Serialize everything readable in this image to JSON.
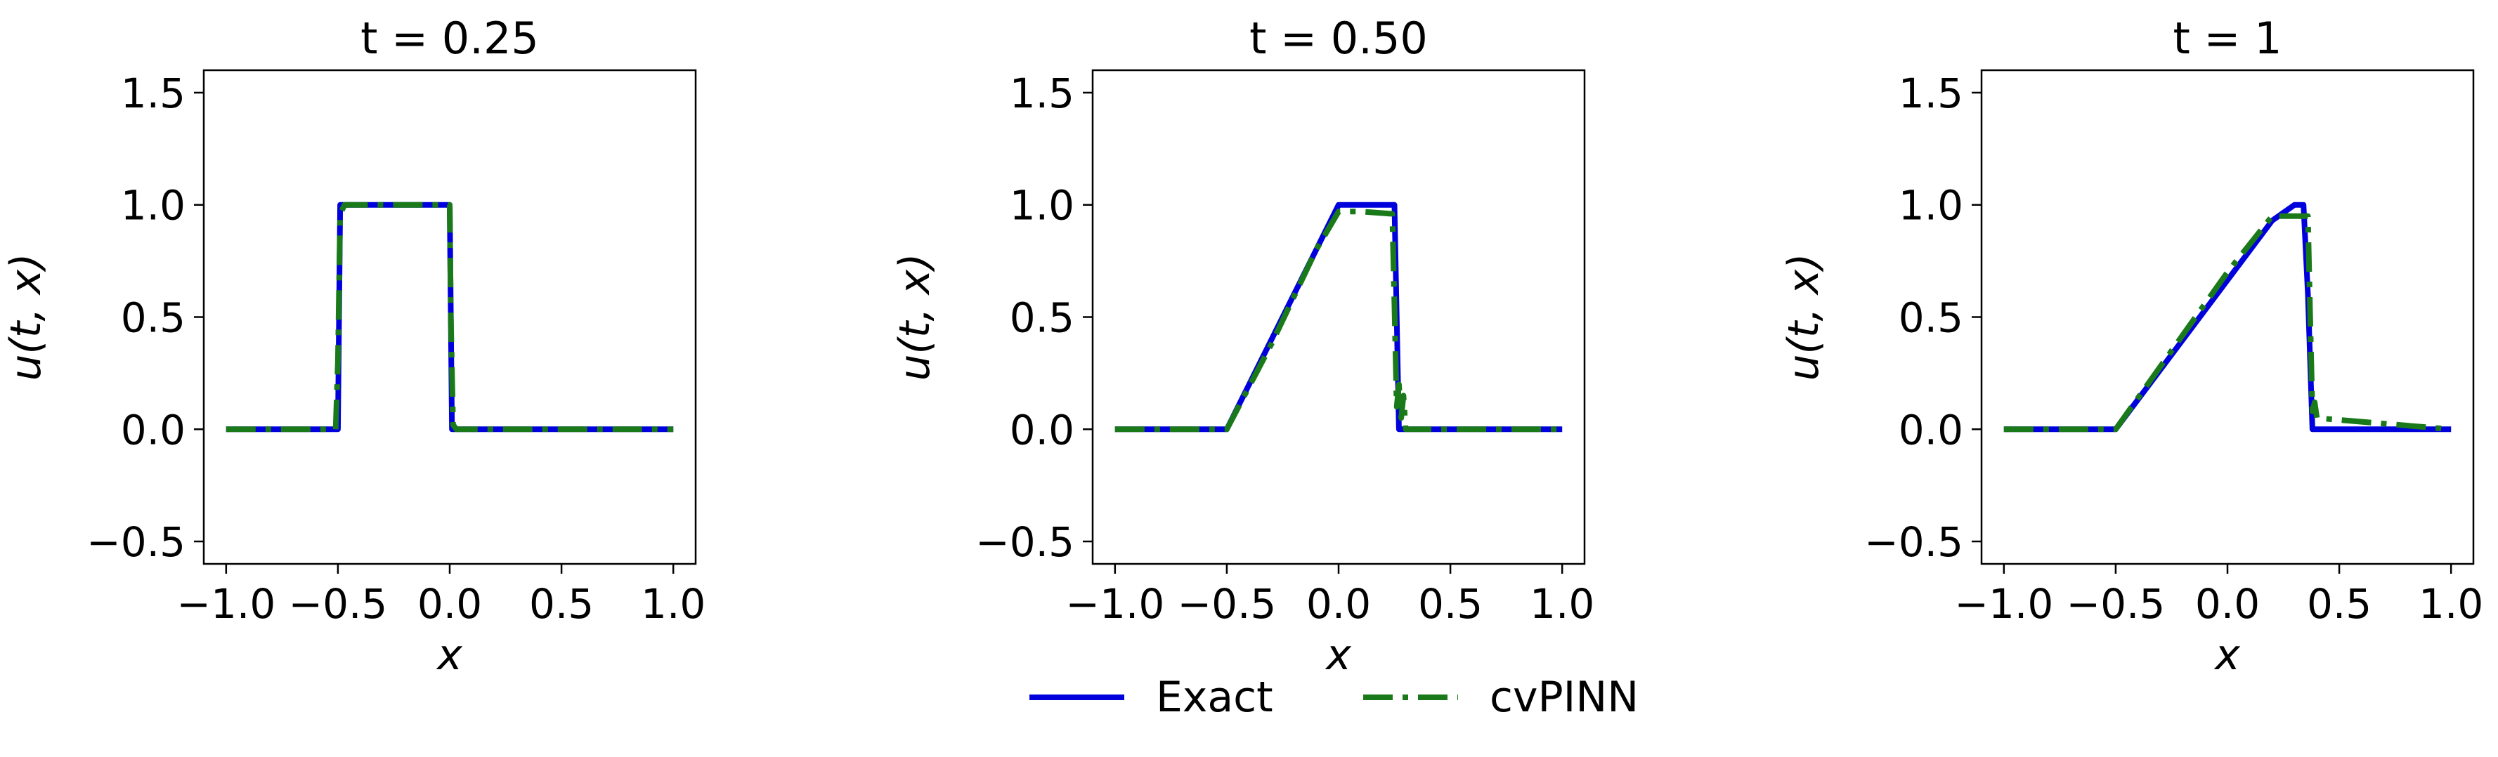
{
  "chart_data": [
    {
      "type": "line",
      "title": "t = 0.25",
      "xlabel": "x",
      "ylabel": "u(t, x)",
      "xlim": [
        -1.1,
        1.1
      ],
      "ylim": [
        -0.6,
        1.6
      ],
      "xticks": [
        -1.0,
        -0.5,
        0.0,
        0.5,
        1.0
      ],
      "xtick_labels": [
        "−1.0",
        "−0.5",
        "0.0",
        "0.5",
        "1.0"
      ],
      "yticks": [
        -0.5,
        0.0,
        0.5,
        1.0,
        1.5
      ],
      "ytick_labels": [
        "−0.5",
        "0.0",
        "0.5",
        "1.0",
        "1.5"
      ],
      "series": [
        {
          "name": "Exact",
          "color": "#0000dd",
          "style": "solid",
          "x": [
            -1.0,
            -0.5,
            -0.49,
            0.0,
            0.01,
            1.0
          ],
          "y": [
            0.0,
            0.0,
            1.0,
            1.0,
            0.0,
            0.0
          ]
        },
        {
          "name": "cvPINN",
          "color": "#1a7a1a",
          "style": "dashdot",
          "x": [
            -1.0,
            -0.51,
            -0.5,
            -0.49,
            -0.47,
            0.0,
            0.005,
            0.015,
            0.03,
            1.0
          ],
          "y": [
            0.0,
            0.0,
            0.3,
            0.96,
            1.0,
            1.0,
            0.5,
            0.02,
            0.0,
            0.0
          ]
        }
      ]
    },
    {
      "type": "line",
      "title": "t = 0.50",
      "xlabel": "x",
      "ylabel": "u(t, x)",
      "xlim": [
        -1.1,
        1.1
      ],
      "ylim": [
        -0.6,
        1.6
      ],
      "xticks": [
        -1.0,
        -0.5,
        0.0,
        0.5,
        1.0
      ],
      "xtick_labels": [
        "−1.0",
        "−0.5",
        "0.0",
        "0.5",
        "1.0"
      ],
      "yticks": [
        -0.5,
        0.0,
        0.5,
        1.0,
        1.5
      ],
      "ytick_labels": [
        "−0.5",
        "0.0",
        "0.5",
        "1.0",
        "1.5"
      ],
      "series": [
        {
          "name": "Exact",
          "color": "#0000dd",
          "style": "solid",
          "x": [
            -1.0,
            -0.5,
            0.0,
            0.25,
            0.27,
            1.0
          ],
          "y": [
            0.0,
            0.0,
            1.0,
            1.0,
            0.0,
            0.0
          ]
        },
        {
          "name": "cvPINN",
          "color": "#1a7a1a",
          "style": "dashdot",
          "x": [
            -1.0,
            -0.5,
            -0.3,
            -0.1,
            0.0,
            0.1,
            0.24,
            0.25,
            0.26,
            0.27,
            0.28,
            0.29,
            0.3,
            1.0
          ],
          "y": [
            0.0,
            0.0,
            0.38,
            0.8,
            0.97,
            0.97,
            0.96,
            0.55,
            0.1,
            0.2,
            0.05,
            0.15,
            0.0,
            0.0
          ]
        }
      ]
    },
    {
      "type": "line",
      "title": "t = 1",
      "xlabel": "x",
      "ylabel": "u(t, x)",
      "xlim": [
        -1.1,
        1.1
      ],
      "ylim": [
        -0.6,
        1.6
      ],
      "xticks": [
        -1.0,
        -0.5,
        0.0,
        0.5,
        1.0
      ],
      "xtick_labels": [
        "−1.0",
        "−0.5",
        "0.0",
        "0.5",
        "1.0"
      ],
      "yticks": [
        -0.5,
        0.0,
        0.5,
        1.0,
        1.5
      ],
      "ytick_labels": [
        "−0.5",
        "0.0",
        "0.5",
        "1.0",
        "1.5"
      ],
      "series": [
        {
          "name": "Exact",
          "color": "#0000dd",
          "style": "solid",
          "x": [
            -1.0,
            -0.5,
            0.2,
            0.3,
            0.34,
            0.36,
            0.38,
            1.0
          ],
          "y": [
            0.0,
            0.0,
            0.93,
            1.0,
            1.0,
            0.6,
            0.0,
            0.0
          ]
        },
        {
          "name": "cvPINN",
          "color": "#1a7a1a",
          "style": "dashdot",
          "x": [
            -1.0,
            -0.5,
            -0.2,
            0.0,
            0.2,
            0.36,
            0.37,
            0.38,
            0.39,
            0.4,
            1.0
          ],
          "y": [
            0.0,
            0.0,
            0.42,
            0.7,
            0.95,
            0.95,
            0.5,
            0.08,
            0.12,
            0.05,
            0.0
          ]
        }
      ]
    }
  ],
  "legend": {
    "placement": "bottom-center",
    "entries": [
      {
        "label": "Exact",
        "color": "#0000dd",
        "style": "solid"
      },
      {
        "label": "cvPINN",
        "color": "#1a7a1a",
        "style": "dashdot"
      }
    ]
  }
}
